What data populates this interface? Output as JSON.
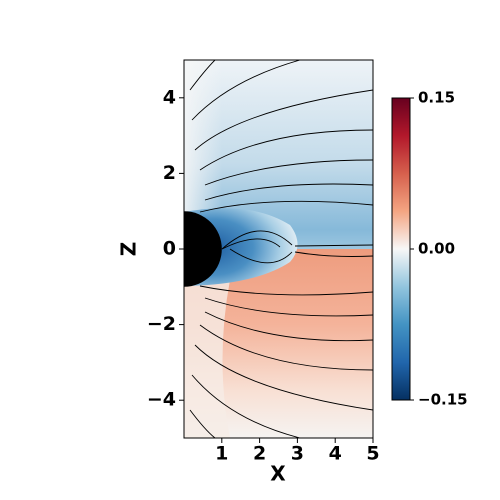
{
  "chart_data": {
    "type": "streamplot",
    "xlabel": "X",
    "ylabel": "Z",
    "xlim": [
      0,
      5
    ],
    "ylim": [
      -5,
      5
    ],
    "xticks": [
      1,
      2,
      3,
      4,
      5
    ],
    "yticks": [
      {
        "value": -4,
        "label": "−4"
      },
      {
        "value": -2,
        "label": "−2"
      },
      0,
      2,
      4
    ],
    "colorbar": {
      "clim": [
        -0.15,
        0.15
      ],
      "ticks": [
        {
          "value": -0.15,
          "label": "−0.15"
        },
        {
          "value": 0,
          "label": "0.00"
        },
        0.15
      ],
      "colors": [
        "#053061",
        "#2166ac",
        "#4393c3",
        "#92c5de",
        "#f7f7f7",
        "#f4a582",
        "#d6604d",
        "#b2182b",
        "#67001f"
      ]
    }
  }
}
